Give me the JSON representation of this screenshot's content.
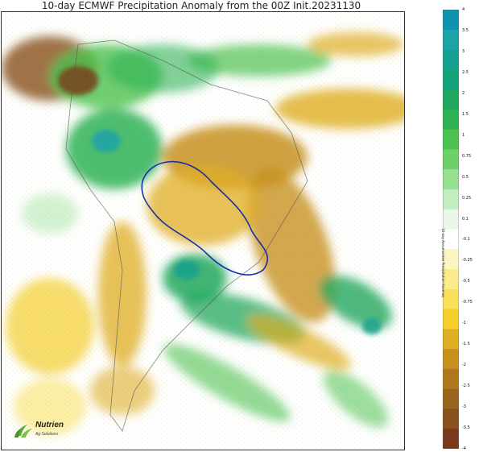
{
  "title": "10-day ECMWF Precipitation Anomaly from the 00Z Init.20231130",
  "colorbar": {
    "label": "10-day Accumulated Precipitation Anomaly",
    "ticks": [
      "4",
      "3.5",
      "3",
      "2.5",
      "2",
      "1.5",
      "1",
      "0.75",
      "0.5",
      "0.25",
      "0.1",
      "-0.1",
      "-0.25",
      "-0.5",
      "-0.75",
      "-1",
      "-1.5",
      "-2",
      "-2.5",
      "-3",
      "-3.5",
      "-4"
    ],
    "colors": [
      "#0f93b0",
      "#1da2a9",
      "#16a08f",
      "#15a27b",
      "#1fa85e",
      "#2fb355",
      "#4cc24f",
      "#6dd169",
      "#96df93",
      "#c2edc0",
      "#e9f7e8",
      "#ffffff",
      "#fbf5c4",
      "#fbeb8f",
      "#f9e05a",
      "#f5cf2e",
      "#e0ae23",
      "#c8911e",
      "#b0781c",
      "#99641c",
      "#87501d",
      "#7a391c"
    ]
  },
  "logo": {
    "name": "Nutrien",
    "subtitle": "Ag Solutions"
  }
}
